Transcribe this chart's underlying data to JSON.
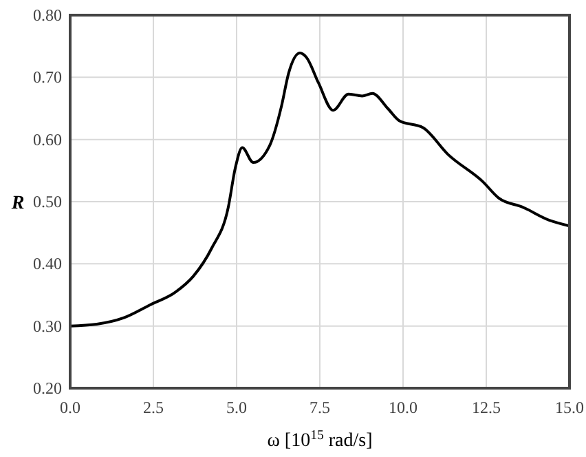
{
  "chart_data": {
    "type": "line",
    "xlabel": "ω [10$^{15}$ rad/s]",
    "ylabel": "R",
    "xlim": [
      0,
      15
    ],
    "ylim": [
      0.2,
      0.8
    ],
    "xticks": [
      {
        "value": 0,
        "label": "0.0"
      },
      2.5,
      {
        "value": 5,
        "label": "5.0"
      },
      7.5,
      {
        "value": 10,
        "label": "10.0"
      },
      12.5,
      {
        "value": 15,
        "label": "15.0"
      }
    ],
    "yticks": [
      {
        "value": 0.2,
        "label": "0.20"
      },
      {
        "value": 0.3,
        "label": "0.30"
      },
      {
        "value": 0.4,
        "label": "0.40"
      },
      {
        "value": 0.5,
        "label": "0.50"
      },
      {
        "value": 0.6,
        "label": "0.60"
      },
      {
        "value": 0.7,
        "label": "0.70"
      },
      {
        "value": 0.8,
        "label": "0.80"
      }
    ],
    "grid": true,
    "marker": "none",
    "line_style": "solid",
    "series": [
      {
        "color": "#000000",
        "x": [
          0,
          0.8,
          1.6,
          2.4,
          3.15,
          3.7,
          4.25,
          4.75,
          4.96,
          5.17,
          5.5,
          6.0,
          6.35,
          6.56,
          6.9,
          7.1,
          7.46,
          7.9,
          8.36,
          8.77,
          9.08,
          9.54,
          9.89,
          10.6,
          11.35,
          12.4,
          12.87,
          13.6,
          14.4,
          15
        ],
        "values": [
          0.3,
          0.303,
          0.313,
          0.334,
          0.354,
          0.38,
          0.425,
          0.491,
          0.554,
          0.587,
          0.563,
          0.591,
          0.654,
          0.706,
          0.739,
          0.732,
          0.691,
          0.647,
          0.673,
          0.67,
          0.674,
          0.65,
          0.63,
          0.619,
          0.576,
          0.532,
          0.506,
          0.491,
          0.47,
          0.461
        ]
      }
    ]
  }
}
